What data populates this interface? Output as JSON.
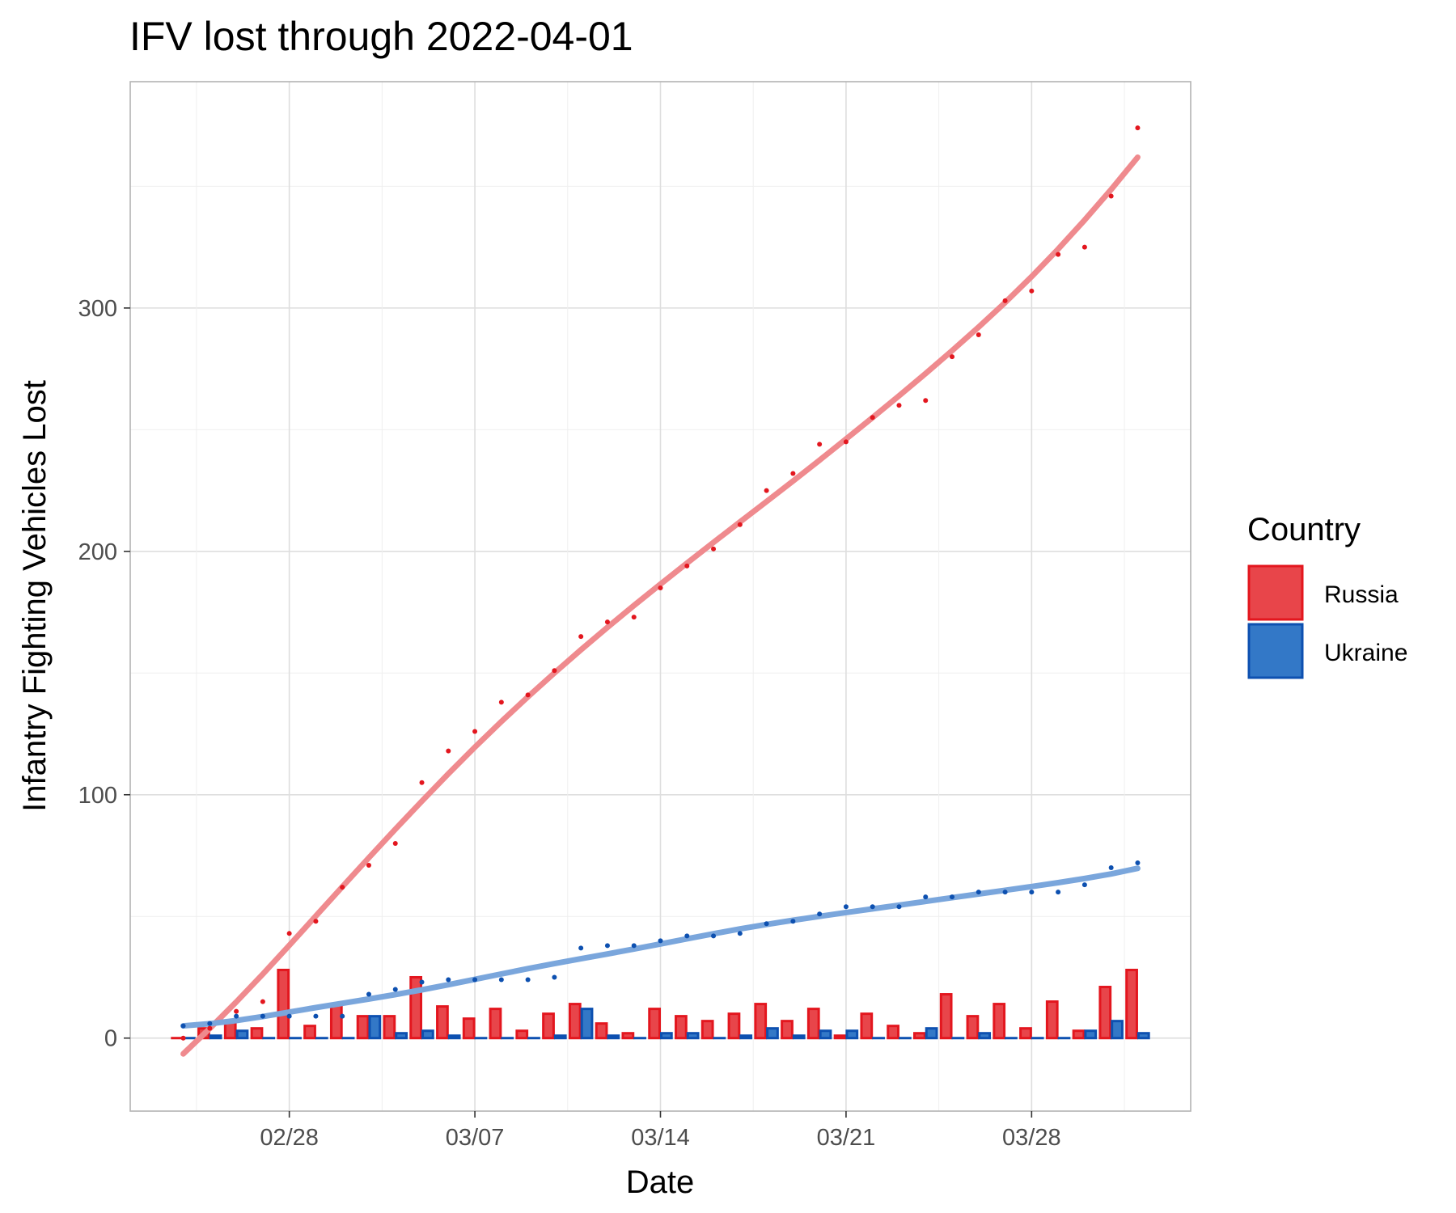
{
  "chart_data": {
    "type": "bar+line+scatter",
    "title": "IFV lost through 2022-04-01",
    "xlabel": "Date",
    "ylabel": "Infantry Fighting Vehicles Lost",
    "ylim": [
      -30,
      393
    ],
    "xlim": [
      "2022-02-22",
      "2022-04-03"
    ],
    "y_ticks": [
      0,
      100,
      200,
      300
    ],
    "y_tick_labels": [
      "0",
      "100",
      "200",
      "300"
    ],
    "x_ticks": [
      "2022-02-28",
      "2022-03-07",
      "2022-03-14",
      "2022-03-21",
      "2022-03-28"
    ],
    "x_tick_labels": [
      "02/28",
      "03/07",
      "03/14",
      "03/21",
      "03/28"
    ],
    "grid": true,
    "legend_position": "right",
    "legend_title": "Country",
    "series": [
      {
        "name": "Russia",
        "color": "#e8454a",
        "stroke": "#e3161e",
        "line_color": "#ef8a8e",
        "dates": [
          "2022-02-24",
          "2022-02-25",
          "2022-02-26",
          "2022-02-27",
          "2022-02-28",
          "2022-03-01",
          "2022-03-02",
          "2022-03-03",
          "2022-03-04",
          "2022-03-05",
          "2022-03-06",
          "2022-03-07",
          "2022-03-08",
          "2022-03-09",
          "2022-03-10",
          "2022-03-11",
          "2022-03-12",
          "2022-03-13",
          "2022-03-14",
          "2022-03-15",
          "2022-03-16",
          "2022-03-17",
          "2022-03-18",
          "2022-03-19",
          "2022-03-20",
          "2022-03-21",
          "2022-03-22",
          "2022-03-23",
          "2022-03-24",
          "2022-03-25",
          "2022-03-26",
          "2022-03-27",
          "2022-03-28",
          "2022-03-29",
          "2022-03-30",
          "2022-03-31",
          "2022-04-01"
        ],
        "cumulative": [
          0,
          4,
          11,
          15,
          43,
          48,
          62,
          71,
          80,
          105,
          118,
          126,
          138,
          141,
          151,
          165,
          171,
          173,
          185,
          194,
          201,
          211,
          225,
          232,
          244,
          245,
          255,
          260,
          262,
          280,
          289,
          303,
          307,
          322,
          325,
          346,
          374
        ],
        "daily": [
          0,
          4,
          7,
          4,
          28,
          5,
          14,
          9,
          9,
          25,
          13,
          8,
          12,
          3,
          10,
          14,
          6,
          2,
          12,
          9,
          7,
          10,
          14,
          7,
          12,
          1,
          10,
          5,
          2,
          18,
          9,
          14,
          4,
          15,
          3,
          21,
          28
        ]
      },
      {
        "name": "Ukraine",
        "color": "#3378c7",
        "stroke": "#0d50b0",
        "line_color": "#7aa6dc",
        "dates": [
          "2022-02-24",
          "2022-02-25",
          "2022-02-26",
          "2022-02-27",
          "2022-02-28",
          "2022-03-01",
          "2022-03-02",
          "2022-03-03",
          "2022-03-04",
          "2022-03-05",
          "2022-03-06",
          "2022-03-07",
          "2022-03-08",
          "2022-03-09",
          "2022-03-10",
          "2022-03-11",
          "2022-03-12",
          "2022-03-13",
          "2022-03-14",
          "2022-03-15",
          "2022-03-16",
          "2022-03-17",
          "2022-03-18",
          "2022-03-19",
          "2022-03-20",
          "2022-03-21",
          "2022-03-22",
          "2022-03-23",
          "2022-03-24",
          "2022-03-25",
          "2022-03-26",
          "2022-03-27",
          "2022-03-28",
          "2022-03-29",
          "2022-03-30",
          "2022-03-31",
          "2022-04-01"
        ],
        "cumulative": [
          5,
          6,
          9,
          9,
          9,
          9,
          9,
          18,
          20,
          23,
          24,
          24,
          24,
          24,
          25,
          37,
          38,
          38,
          40,
          42,
          42,
          43,
          47,
          48,
          51,
          54,
          54,
          54,
          58,
          58,
          60,
          60,
          60,
          60,
          63,
          70,
          72
        ],
        "daily": [
          0,
          1,
          3,
          0,
          0,
          0,
          0,
          9,
          2,
          3,
          1,
          0,
          0,
          0,
          1,
          12,
          1,
          0,
          2,
          2,
          0,
          1,
          4,
          1,
          3,
          3,
          0,
          0,
          4,
          0,
          2,
          0,
          0,
          0,
          3,
          7,
          2
        ]
      }
    ]
  }
}
